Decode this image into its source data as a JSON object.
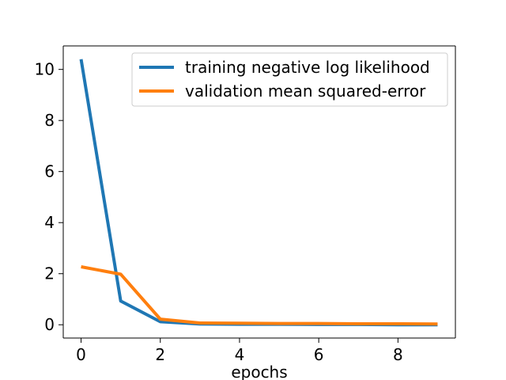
{
  "chart_data": {
    "type": "line",
    "title": "",
    "xlabel": "epochs",
    "ylabel": "",
    "xlim": [
      -0.45,
      9.45
    ],
    "ylim": [
      -0.52,
      10.92
    ],
    "grid": false,
    "legend_position": "top-right",
    "x_ticks": [
      0,
      2,
      4,
      6,
      8
    ],
    "y_ticks": [
      0,
      2,
      4,
      6,
      8,
      10
    ],
    "x_tick_labels": [
      "0",
      "2",
      "4",
      "6",
      "8"
    ],
    "y_tick_labels": [
      "0",
      "2",
      "4",
      "6",
      "8",
      "10"
    ],
    "x": [
      0,
      1,
      2,
      3,
      4,
      5,
      6,
      7,
      8,
      9
    ],
    "series": [
      {
        "name": "training negative log likelihood",
        "color": "#1f77b4",
        "values": [
          10.4,
          0.93,
          0.12,
          0.03,
          0.02,
          0.02,
          0.01,
          0.01,
          0.0,
          0.0
        ]
      },
      {
        "name": "validation mean squared-error",
        "color": "#ff7f0e",
        "values": [
          2.27,
          1.98,
          0.22,
          0.07,
          0.06,
          0.05,
          0.05,
          0.04,
          0.04,
          0.03
        ]
      }
    ]
  }
}
